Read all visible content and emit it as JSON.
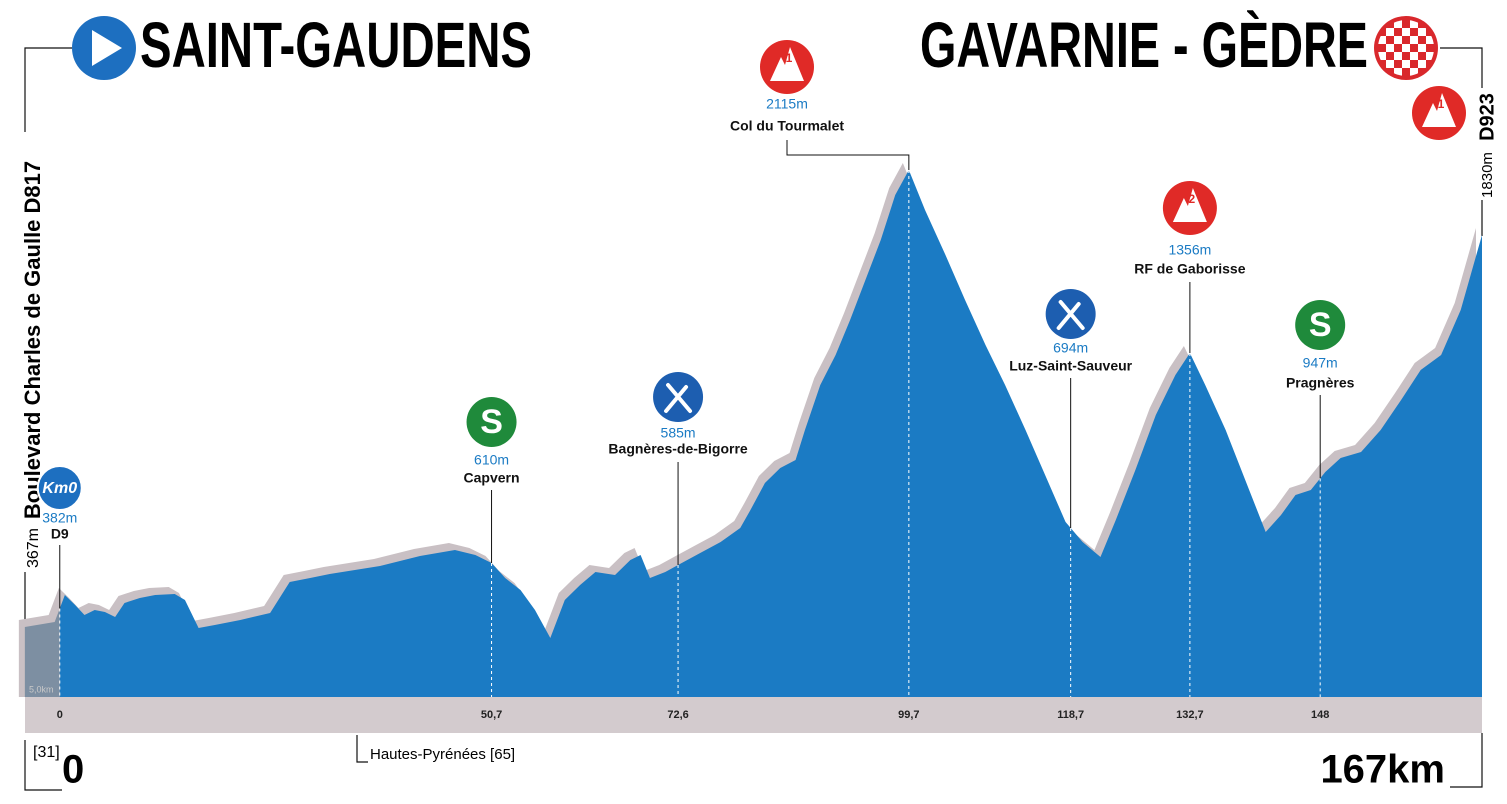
{
  "header": {
    "start": "SAINT-GAUDENS",
    "finish": "GAVARNIE - GÈDRE"
  },
  "chart_data": {
    "type": "area",
    "x": [
      -4.1,
      -0.6,
      0,
      0.6,
      1.8,
      2.9,
      4.1,
      5.3,
      6.5,
      7.6,
      9.4,
      11.2,
      13.5,
      14.7,
      16.3,
      18.2,
      21.2,
      24.7,
      27.0,
      29.4,
      31.7,
      37.6,
      42.3,
      46.4,
      48.8,
      50.7,
      52.3,
      54.1,
      55.8,
      57.6,
      59.3,
      61.1,
      62.9,
      65.2,
      67.0,
      68.2,
      69.3,
      71.1,
      72.6,
      75.2,
      77.6,
      79.9,
      81.1,
      82.8,
      84.6,
      86.4,
      87.5,
      89.3,
      91.1,
      92.8,
      94.6,
      96.4,
      98.1,
      99.7,
      101.6,
      104.0,
      106.3,
      108.7,
      111.0,
      113.4,
      115.7,
      118.1,
      120.1,
      122.2,
      124.0,
      126.3,
      128.7,
      131.0,
      132.7,
      134.5,
      136.9,
      139.2,
      141.6,
      143.4,
      145.1,
      146.9,
      148.6,
      150.4,
      152.8,
      155.1,
      157.5,
      159.8,
      162.2,
      164.5,
      167
    ],
    "values": [
      280,
      300,
      354,
      408,
      368,
      328,
      348,
      340,
      320,
      376,
      396,
      408,
      412,
      388,
      276,
      288,
      308,
      336,
      460,
      476,
      492,
      524,
      564,
      588,
      568,
      536,
      476,
      428,
      348,
      236,
      388,
      448,
      500,
      488,
      548,
      568,
      476,
      500,
      528,
      576,
      620,
      676,
      748,
      856,
      916,
      948,
      1068,
      1248,
      1368,
      1508,
      1668,
      1828,
      2008,
      2108,
      1948,
      1768,
      1588,
      1408,
      1248,
      1068,
      888,
      700,
      620,
      560,
      708,
      908,
      1128,
      1288,
      1376,
      1248,
      1068,
      868,
      660,
      728,
      808,
      828,
      900,
      956,
      980,
      1068,
      1188,
      1308,
      1368,
      1548,
      1848
    ],
    "xlim": [
      -4.2,
      167
    ],
    "ylim": [
      0,
      2788
    ],
    "color": "#1b7bc4",
    "neutral_color": "#7d8fa2",
    "shadow_color": "#c9c0c4",
    "xticks": [
      0,
      {
        "value": 50.7,
        "label": "50,7"
      },
      {
        "value": 72.6,
        "label": "72,6"
      },
      {
        "value": 99.7,
        "label": "99,7"
      },
      {
        "value": 118.7,
        "label": "118,7"
      },
      {
        "value": 132.7,
        "label": "132,7"
      },
      148
    ],
    "neutral_label": "5,0km",
    "start_road": "Boulevard Charles de Gaulle D817",
    "start_altitude": "367m",
    "finish_road": "D923",
    "finish_altitude": "1830m",
    "start_department": "[31]",
    "start_km": "0",
    "finish_km": "167km",
    "department_label": "Hautes-Pyrénées [65]",
    "points": [
      {
        "km": 0,
        "icon": "km0",
        "icon_text": "Km0",
        "altitude": "382m",
        "name": "D9"
      },
      {
        "km": 50.7,
        "icon": "sprint",
        "icon_text": "S",
        "altitude": "610m",
        "name": "Capvern"
      },
      {
        "km": 72.6,
        "icon": "feed",
        "altitude": "585m",
        "name": "Bagnères-de-Bigorre"
      },
      {
        "km": 99.7,
        "icon": "climb",
        "icon_text": "1",
        "altitude": "2115m",
        "name": "Col du Tourmalet"
      },
      {
        "km": 118.7,
        "icon": "feed",
        "altitude": "694m",
        "name": "Luz-Saint-Sauveur"
      },
      {
        "km": 132.7,
        "icon": "climb",
        "icon_text": "2",
        "altitude": "1356m",
        "name": "RF de Gaborisse"
      },
      {
        "km": 148,
        "icon": "sprint",
        "icon_text": "S",
        "altitude": "947m",
        "name": "Pragnères"
      },
      {
        "km": 167,
        "icon": "climb",
        "icon_text": "1"
      }
    ]
  }
}
